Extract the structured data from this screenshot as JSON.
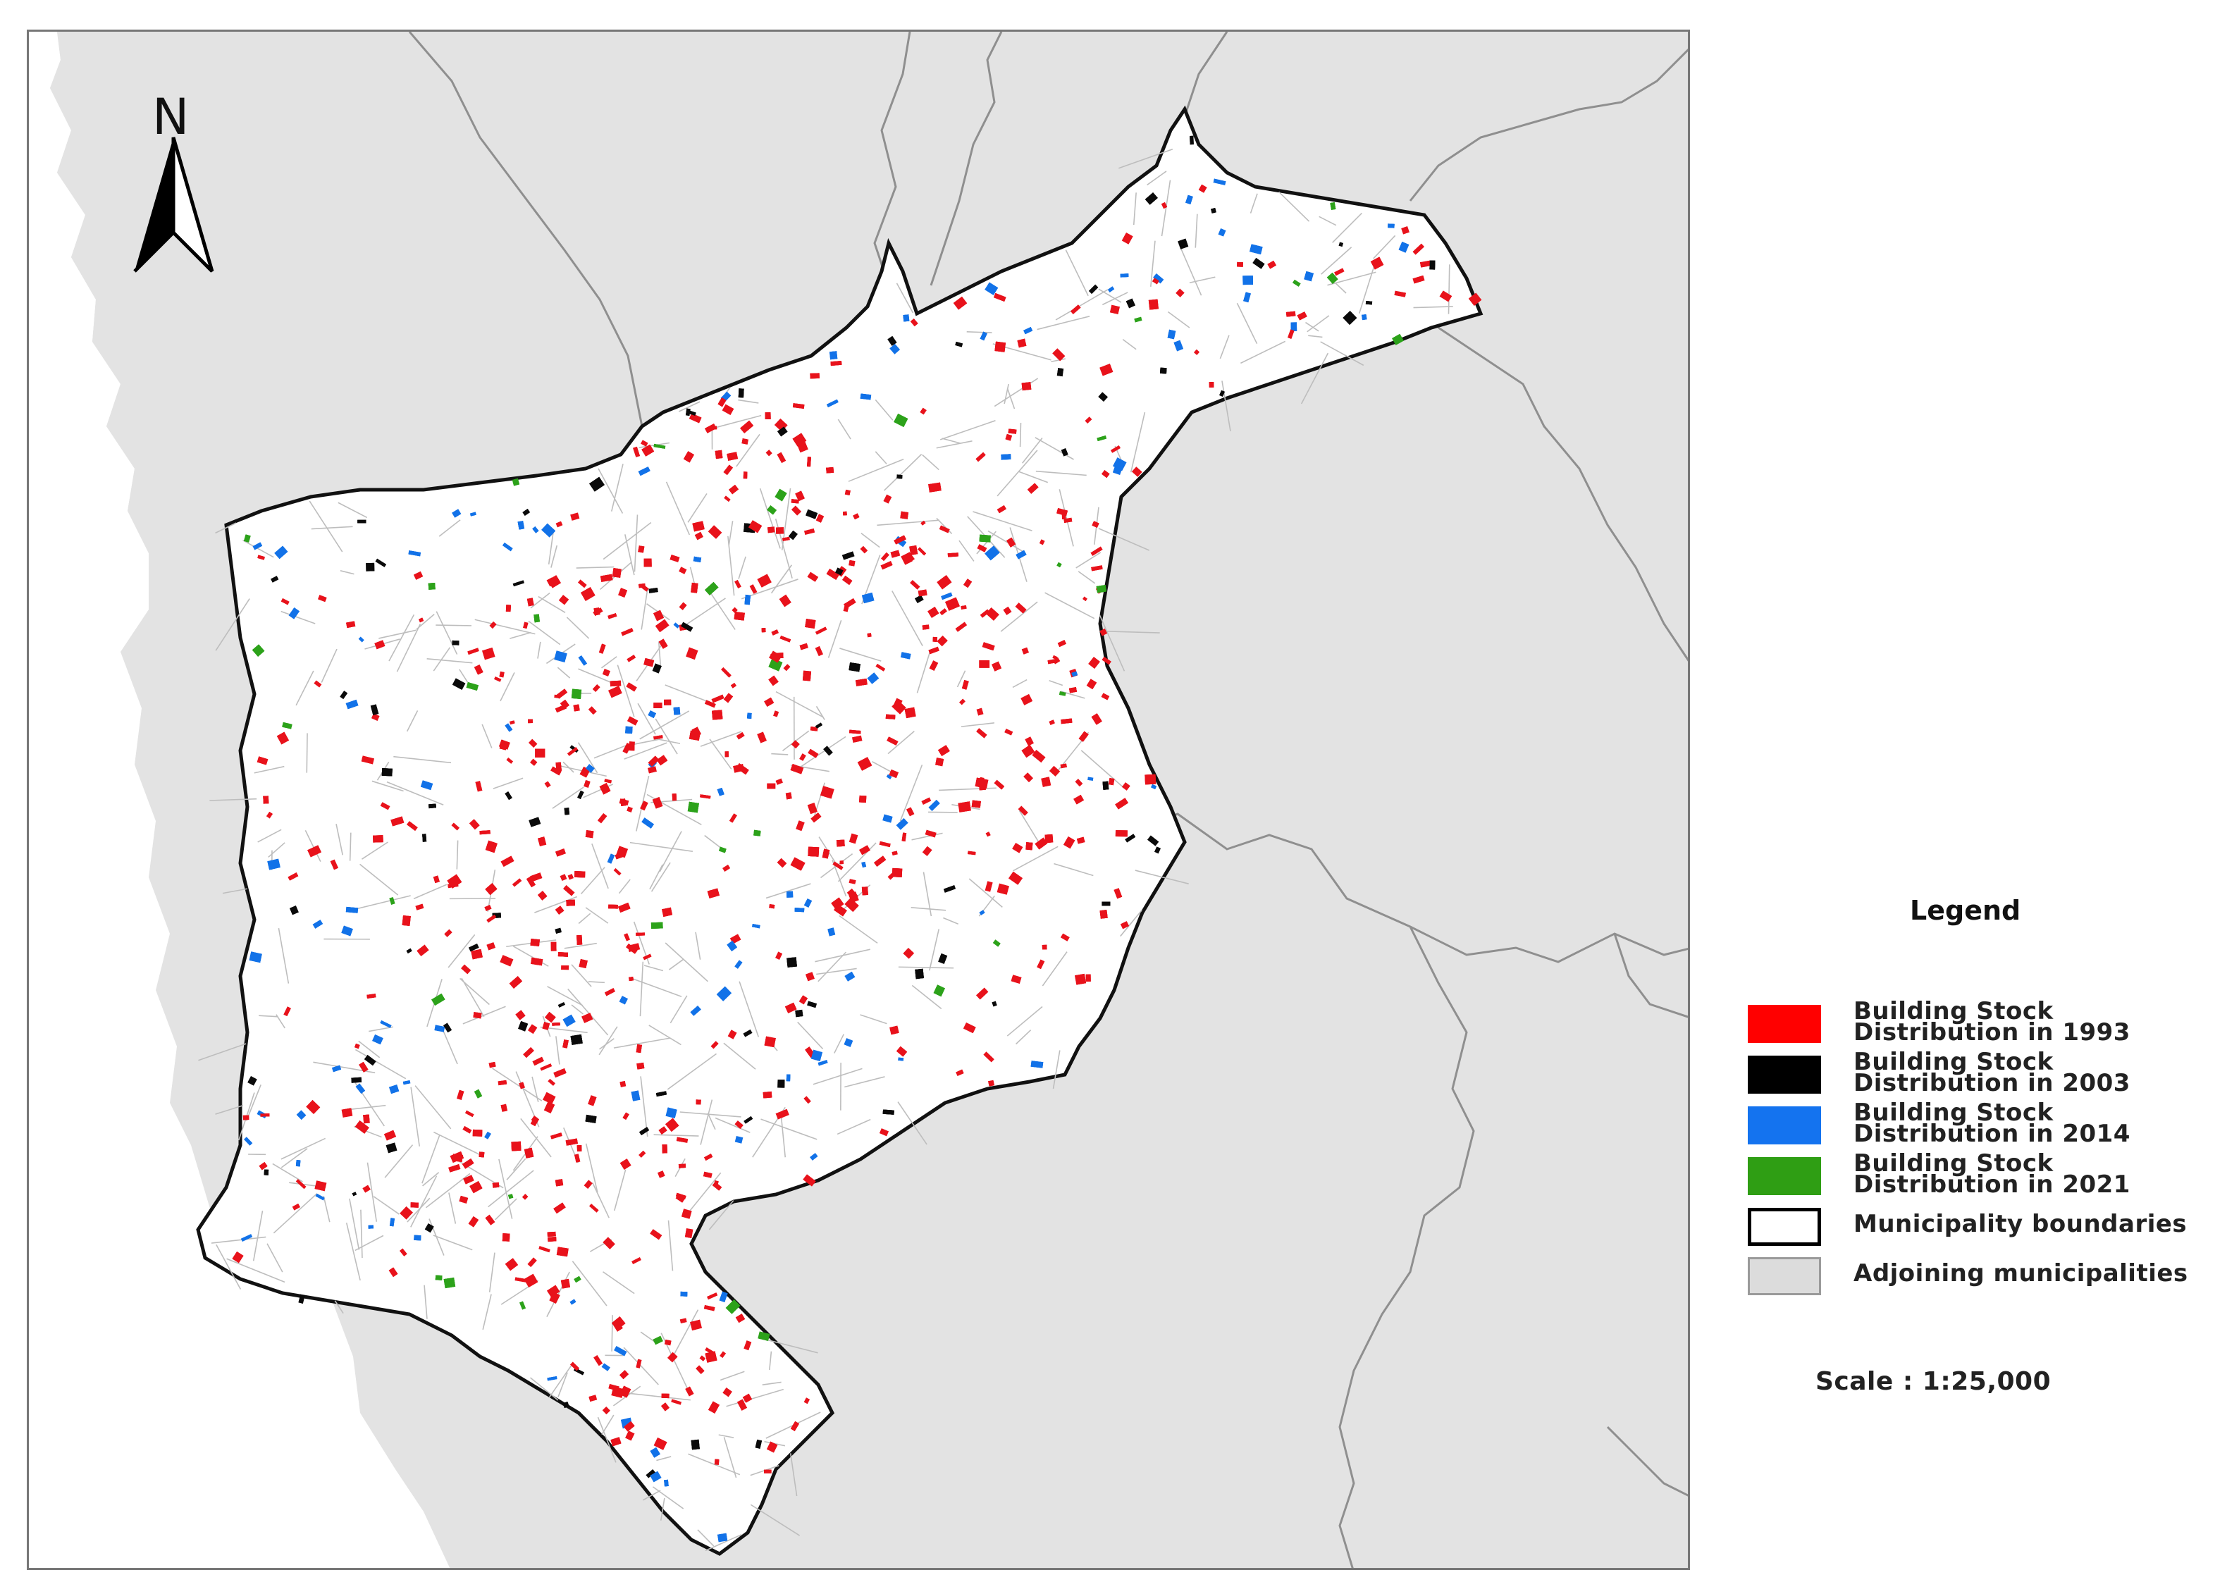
{
  "map": {
    "north_label": "N",
    "colors": {
      "adjoining": "#e3e3e3",
      "municipality": "#ffffff",
      "boundary": "#111111",
      "streets": "#bdbdbd",
      "b1993": "#e8121b",
      "b2003": "#0a0a0a",
      "b2014": "#1272e8",
      "b2021": "#2ca21a"
    }
  },
  "legend": {
    "title": "Legend",
    "items": [
      {
        "label": "Building Stock\nDistribution in 1993",
        "color": "#ff0000",
        "border": "#ff0000"
      },
      {
        "label": "Building Stock\nDistribution in 2003",
        "color": "#000000",
        "border": "#000000"
      },
      {
        "label": "Building Stock\nDistribution in 2014",
        "color": "#1473ef",
        "border": "#1473ef"
      },
      {
        "label": "Building Stock\nDistribution in 2021",
        "color": "#2f9e14",
        "border": "#2f9e14"
      },
      {
        "label": "Municipality boundaries",
        "color": "#ffffff",
        "border": "#000000"
      },
      {
        "label": "Adjoining municipalities",
        "color": "#dcdcdc",
        "border": "#9a9a9a"
      }
    ],
    "scale": "Scale : 1:25,000"
  }
}
